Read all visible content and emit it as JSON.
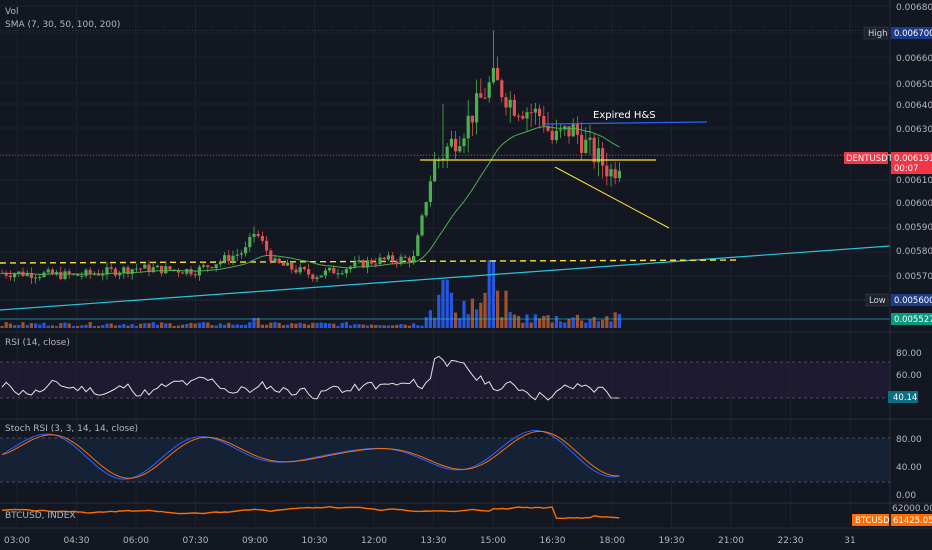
{
  "legend": {
    "vol": "Vol",
    "sma": "SMA (7, 30, 50, 100, 200)"
  },
  "annotation": {
    "text": "Expired H&S"
  },
  "price_axis": {
    "labels": [
      "0.006800",
      "0.006700",
      "0.006600",
      "0.006500",
      "0.006400",
      "0.006300",
      "0.006200",
      "0.006100",
      "0.006000",
      "0.005900",
      "0.005800",
      "0.005700",
      "0.005600",
      "0.005527"
    ]
  },
  "tags": {
    "high_label": "High",
    "high_value": "0.006700",
    "low_label": "Low",
    "low_value": "0.005600",
    "last_value": "0.005527",
    "dentusdt_label": "DENTUSDT",
    "dentusdt_value": "0.006191",
    "dentusdt_countdown": "00:07",
    "btcusd_label": "BTCUSD",
    "btcusd_value": "61425.05"
  },
  "rsi": {
    "title": "RSI (14, close)",
    "ticks": [
      "80.00",
      "60.00"
    ],
    "value": "40.14"
  },
  "stoch": {
    "title": "Stoch RSI (3, 3, 14, 14, close)",
    "ticks": [
      "80.00",
      "40.00",
      "0.00"
    ]
  },
  "btc": {
    "title": "BTCUSD, INDEX",
    "tick": "62000.00"
  },
  "time_axis": {
    "labels": [
      "03:00",
      "04:30",
      "06:00",
      "07:30",
      "09:00",
      "10:30",
      "12:00",
      "13:30",
      "15:00",
      "16:30",
      "18:00",
      "19:30",
      "21:00",
      "22:30",
      "31"
    ]
  },
  "colors": {
    "bg": "#131722",
    "up": "#26a69a",
    "down": "#ef5350",
    "candle_up": "#4caf50",
    "candle_down": "#e05252",
    "sma": "#4caf50",
    "trend": "#26c6da",
    "neckline": "#fbe232",
    "hs_top": "#2962ff"
  },
  "chart_data": {
    "type": "candlestick",
    "symbol": "DENTUSDT",
    "ylim": [
      0.0055,
      0.0068
    ],
    "x_range": [
      "03:00",
      "31"
    ],
    "price_keypoints": [
      {
        "t": "03:00",
        "p": 0.00571
      },
      {
        "t": "04:30",
        "p": 0.0057
      },
      {
        "t": "06:00",
        "p": 0.00573
      },
      {
        "t": "07:30",
        "p": 0.00572
      },
      {
        "t": "08:45",
        "p": 0.0058
      },
      {
        "t": "09:00",
        "p": 0.00588
      },
      {
        "t": "09:30",
        "p": 0.00575
      },
      {
        "t": "10:30",
        "p": 0.0057
      },
      {
        "t": "12:00",
        "p": 0.00576
      },
      {
        "t": "13:00",
        "p": 0.00577
      },
      {
        "t": "13:30",
        "p": 0.00615
      },
      {
        "t": "14:15",
        "p": 0.0063
      },
      {
        "t": "15:00",
        "p": 0.0065
      },
      {
        "t": "15:30",
        "p": 0.0064
      },
      {
        "t": "16:15",
        "p": 0.00635
      },
      {
        "t": "16:30",
        "p": 0.00625
      },
      {
        "t": "17:00",
        "p": 0.0063
      },
      {
        "t": "17:30",
        "p": 0.0062
      },
      {
        "t": "18:00",
        "p": 0.00612
      },
      {
        "t": "18:15",
        "p": 0.00619
      }
    ],
    "high": 0.0067,
    "low": 0.0056,
    "last": 0.006191,
    "rsi_last": 40.14,
    "btcusd_last": 61425.05
  }
}
